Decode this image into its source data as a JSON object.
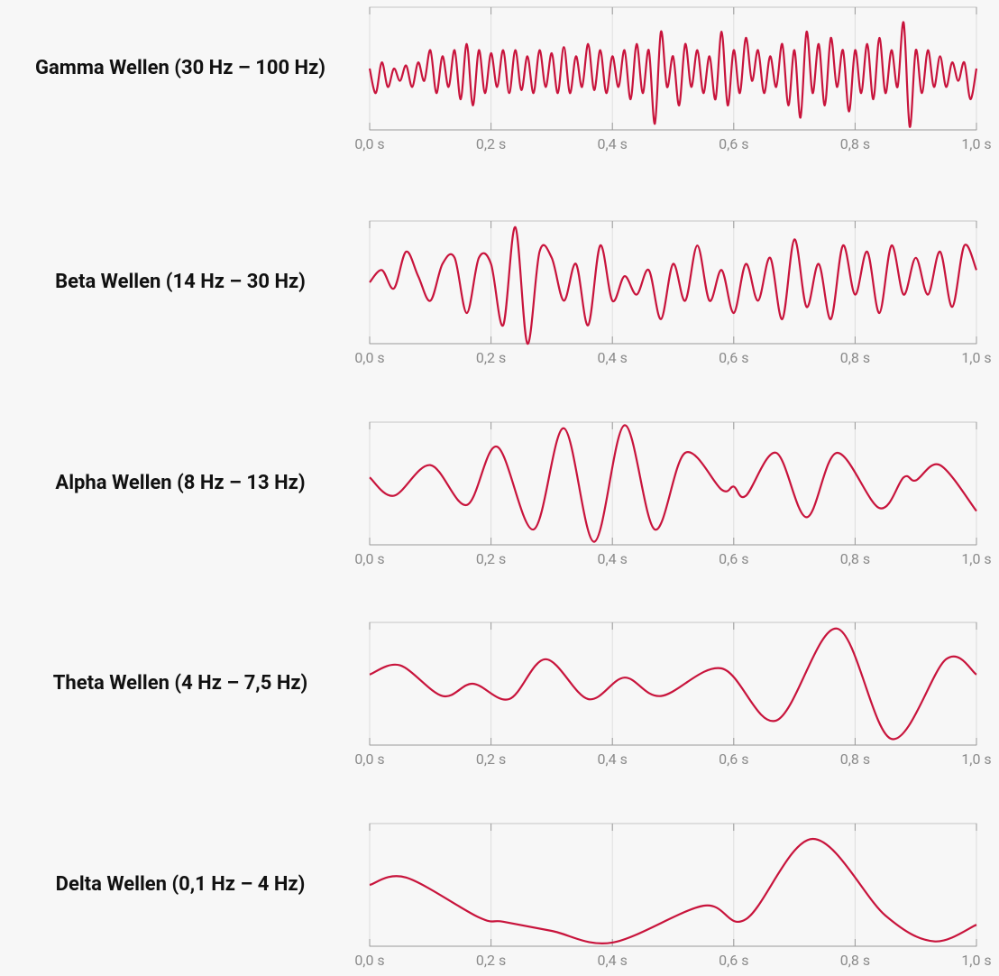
{
  "chart_data": [
    {
      "type": "line",
      "title": "Gamma Wellen (30 Hz – 100 Hz)",
      "color": "#c8143c",
      "xlim": [
        0,
        1
      ],
      "ylim": [
        -1,
        1
      ],
      "xticks": [
        {
          "value": 0,
          "label": "0,0 s"
        },
        {
          "value": 0.2,
          "label": "0,2 s"
        },
        {
          "value": 0.4,
          "label": "0,4 s"
        },
        {
          "value": 0.6,
          "label": "0,6 s"
        },
        {
          "value": 0.8,
          "label": "0,8 s"
        },
        {
          "value": 1,
          "label": "1,0 s"
        }
      ],
      "x": [
        0,
        0.01,
        0.02,
        0.03,
        0.04,
        0.05,
        0.06,
        0.07,
        0.08,
        0.09,
        0.1,
        0.11,
        0.12,
        0.13,
        0.14,
        0.15,
        0.16,
        0.17,
        0.18,
        0.19,
        0.2,
        0.21,
        0.22,
        0.23,
        0.24,
        0.25,
        0.26,
        0.27,
        0.28,
        0.29,
        0.3,
        0.31,
        0.32,
        0.33,
        0.34,
        0.35,
        0.36,
        0.37,
        0.38,
        0.39,
        0.4,
        0.41,
        0.42,
        0.43,
        0.44,
        0.45,
        0.46,
        0.47,
        0.48,
        0.49,
        0.5,
        0.51,
        0.52,
        0.53,
        0.54,
        0.55,
        0.56,
        0.57,
        0.58,
        0.59,
        0.6,
        0.61,
        0.62,
        0.63,
        0.64,
        0.65,
        0.66,
        0.67,
        0.68,
        0.69,
        0.7,
        0.71,
        0.72,
        0.73,
        0.74,
        0.75,
        0.76,
        0.77,
        0.78,
        0.79,
        0.8,
        0.81,
        0.82,
        0.83,
        0.84,
        0.85,
        0.86,
        0.87,
        0.88,
        0.89,
        0.9,
        0.91,
        0.92,
        0.93,
        0.94,
        0.95,
        0.96,
        0.97,
        0.98,
        0.99,
        1
      ],
      "values": [
        0,
        -0.4,
        0.1,
        -0.3,
        0,
        -0.2,
        0.05,
        -0.3,
        0.1,
        -0.2,
        0.3,
        -0.4,
        0.2,
        -0.3,
        0.3,
        -0.5,
        0.4,
        -0.6,
        0.3,
        -0.4,
        0.25,
        -0.3,
        0.3,
        -0.4,
        0.3,
        -0.35,
        0.2,
        -0.4,
        0.3,
        -0.3,
        0.25,
        -0.4,
        0.35,
        -0.4,
        0.2,
        -0.3,
        0.4,
        -0.35,
        0.3,
        -0.4,
        0.2,
        -0.3,
        0.3,
        -0.5,
        0.4,
        -0.4,
        0.3,
        -0.9,
        0.6,
        -0.3,
        0.2,
        -0.6,
        0.4,
        -0.3,
        0.3,
        -0.4,
        0.2,
        -0.5,
        0.6,
        -0.6,
        0.3,
        -0.4,
        0.5,
        -0.2,
        0.3,
        -0.4,
        0.2,
        -0.3,
        0.4,
        -0.6,
        0.3,
        -0.8,
        0.6,
        -0.4,
        0.4,
        -0.6,
        0.5,
        -0.3,
        0.3,
        -0.7,
        0.3,
        -0.4,
        0.4,
        -0.5,
        0.5,
        -0.4,
        0.3,
        -0.3,
        0.75,
        -0.95,
        0.3,
        -0.4,
        0.3,
        -0.3,
        0.2,
        -0.3,
        0.1,
        -0.2,
        0.1,
        -0.5,
        0
      ]
    },
    {
      "type": "line",
      "title": "Beta Wellen (14 Hz – 30 Hz)",
      "color": "#c8143c",
      "xlim": [
        0,
        1
      ],
      "ylim": [
        -1,
        1
      ],
      "xticks": [
        {
          "value": 0,
          "label": "0,0 s"
        },
        {
          "value": 0.2,
          "label": "0,2 s"
        },
        {
          "value": 0.4,
          "label": "0,4 s"
        },
        {
          "value": 0.6,
          "label": "0,6 s"
        },
        {
          "value": 0.8,
          "label": "0,8 s"
        },
        {
          "value": 1,
          "label": "1,0 s"
        }
      ],
      "x": [
        0,
        0.02,
        0.04,
        0.06,
        0.08,
        0.1,
        0.12,
        0.14,
        0.16,
        0.18,
        0.2,
        0.22,
        0.24,
        0.26,
        0.28,
        0.3,
        0.32,
        0.34,
        0.36,
        0.38,
        0.4,
        0.42,
        0.44,
        0.46,
        0.48,
        0.5,
        0.52,
        0.54,
        0.56,
        0.58,
        0.6,
        0.62,
        0.64,
        0.66,
        0.68,
        0.7,
        0.72,
        0.74,
        0.76,
        0.78,
        0.8,
        0.82,
        0.84,
        0.86,
        0.88,
        0.9,
        0.92,
        0.94,
        0.96,
        0.98,
        1
      ],
      "values": [
        0,
        0.2,
        -0.1,
        0.5,
        0.1,
        -0.3,
        0.3,
        0.4,
        -0.5,
        0.4,
        0.3,
        -0.7,
        0.9,
        -1,
        0.5,
        0.4,
        -0.3,
        0.3,
        -0.7,
        0.6,
        -0.3,
        0.1,
        -0.2,
        0.2,
        -0.6,
        0.3,
        -0.3,
        0.6,
        -0.3,
        0.2,
        -0.5,
        0.3,
        -0.3,
        0.4,
        -0.6,
        0.7,
        -0.4,
        0.3,
        -0.6,
        0.6,
        -0.2,
        0.5,
        -0.5,
        0.6,
        -0.2,
        0.4,
        -0.2,
        0.5,
        -0.4,
        0.6,
        0.2
      ]
    },
    {
      "type": "line",
      "title": "Alpha Wellen (8 Hz – 13 Hz)",
      "color": "#c8143c",
      "xlim": [
        0,
        1
      ],
      "ylim": [
        -1,
        1
      ],
      "xticks": [
        {
          "value": 0,
          "label": "0,0 s"
        },
        {
          "value": 0.2,
          "label": "0,2 s"
        },
        {
          "value": 0.4,
          "label": "0,4 s"
        },
        {
          "value": 0.6,
          "label": "0,6 s"
        },
        {
          "value": 0.8,
          "label": "0,8 s"
        },
        {
          "value": 1,
          "label": "1,0 s"
        }
      ],
      "x": [
        0,
        0.04,
        0.1,
        0.16,
        0.21,
        0.27,
        0.32,
        0.37,
        0.42,
        0.47,
        0.52,
        0.58,
        0.6,
        0.62,
        0.67,
        0.72,
        0.77,
        0.84,
        0.88,
        0.9,
        0.94,
        1
      ],
      "values": [
        0.1,
        -0.2,
        0.3,
        -0.35,
        0.6,
        -0.75,
        0.9,
        -0.95,
        0.95,
        -0.75,
        0.5,
        -0.1,
        -0.05,
        -0.2,
        0.5,
        -0.55,
        0.5,
        -0.4,
        0.1,
        0.05,
        0.3,
        -0.45
      ]
    },
    {
      "type": "line",
      "title": "Theta Wellen (4 Hz – 7,5 Hz)",
      "color": "#c8143c",
      "xlim": [
        0,
        1
      ],
      "ylim": [
        -1,
        1
      ],
      "xticks": [
        {
          "value": 0,
          "label": "0,0 s"
        },
        {
          "value": 0.2,
          "label": "0,2 s"
        },
        {
          "value": 0.4,
          "label": "0,4 s"
        },
        {
          "value": 0.6,
          "label": "0,6 s"
        },
        {
          "value": 0.8,
          "label": "0,8 s"
        },
        {
          "value": 1,
          "label": "1,0 s"
        }
      ],
      "x": [
        0,
        0.05,
        0.12,
        0.17,
        0.23,
        0.29,
        0.36,
        0.42,
        0.48,
        0.58,
        0.67,
        0.77,
        0.86,
        0.95,
        1
      ],
      "values": [
        0.15,
        0.3,
        -0.2,
        0,
        -0.25,
        0.4,
        -0.25,
        0.1,
        -0.2,
        0.25,
        -0.6,
        0.9,
        -0.9,
        0.4,
        0.15
      ]
    },
    {
      "type": "line",
      "title": "Delta Wellen (0,1 Hz – 4 Hz)",
      "color": "#c8143c",
      "xlim": [
        0,
        1
      ],
      "ylim": [
        -1,
        1
      ],
      "xticks": [
        {
          "value": 0,
          "label": "0,0 s"
        },
        {
          "value": 0.2,
          "label": "0,2 s"
        },
        {
          "value": 0.4,
          "label": "0,4 s"
        },
        {
          "value": 0.6,
          "label": "0,6 s"
        },
        {
          "value": 0.8,
          "label": "0,8 s"
        },
        {
          "value": 1,
          "label": "1,0 s"
        }
      ],
      "x": [
        0,
        0.06,
        0.18,
        0.22,
        0.3,
        0.4,
        0.55,
        0.62,
        0.73,
        0.85,
        0.93,
        1
      ],
      "values": [
        0,
        0.12,
        -0.53,
        -0.6,
        -0.75,
        -0.94,
        -0.34,
        -0.56,
        0.75,
        -0.5,
        -0.92,
        -0.65
      ]
    }
  ]
}
